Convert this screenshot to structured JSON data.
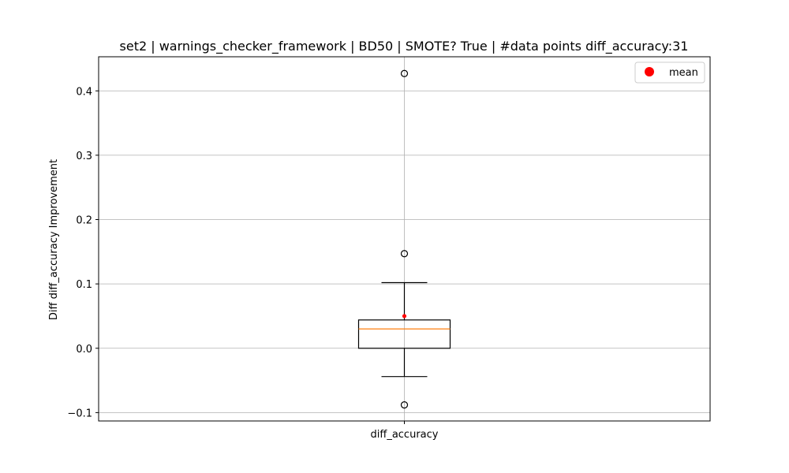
{
  "chart_data": {
    "type": "box",
    "title": "set2 | warnings_checker_framework | BD50 | SMOTE? True | #data points diff_accuracy:31",
    "xlabel": "",
    "ylabel": "Diff diff_accuracy Improvement",
    "ylim": [
      -0.113,
      0.453
    ],
    "yticks": [
      -0.1,
      0.0,
      0.1,
      0.2,
      0.3,
      0.4
    ],
    "ytick_labels": [
      "−0.1",
      "0.0",
      "0.1",
      "0.2",
      "0.3",
      "0.4"
    ],
    "grid": true,
    "legend": {
      "position": "top-right",
      "entries": [
        {
          "label": "mean",
          "color": "#ff0000"
        }
      ]
    },
    "categories": [
      "diff_accuracy"
    ],
    "boxes": [
      {
        "name": "diff_accuracy",
        "whisker_low": -0.044,
        "q1": 0.0,
        "median": 0.03,
        "q3": 0.044,
        "whisker_high": 0.102,
        "mean": 0.05,
        "outliers": [
          0.427,
          0.147,
          -0.088
        ]
      }
    ],
    "colors": {
      "box": "#000000",
      "median": "#ff7f0e",
      "mean": "#ff0000",
      "grid": "#b0b0b0"
    }
  }
}
